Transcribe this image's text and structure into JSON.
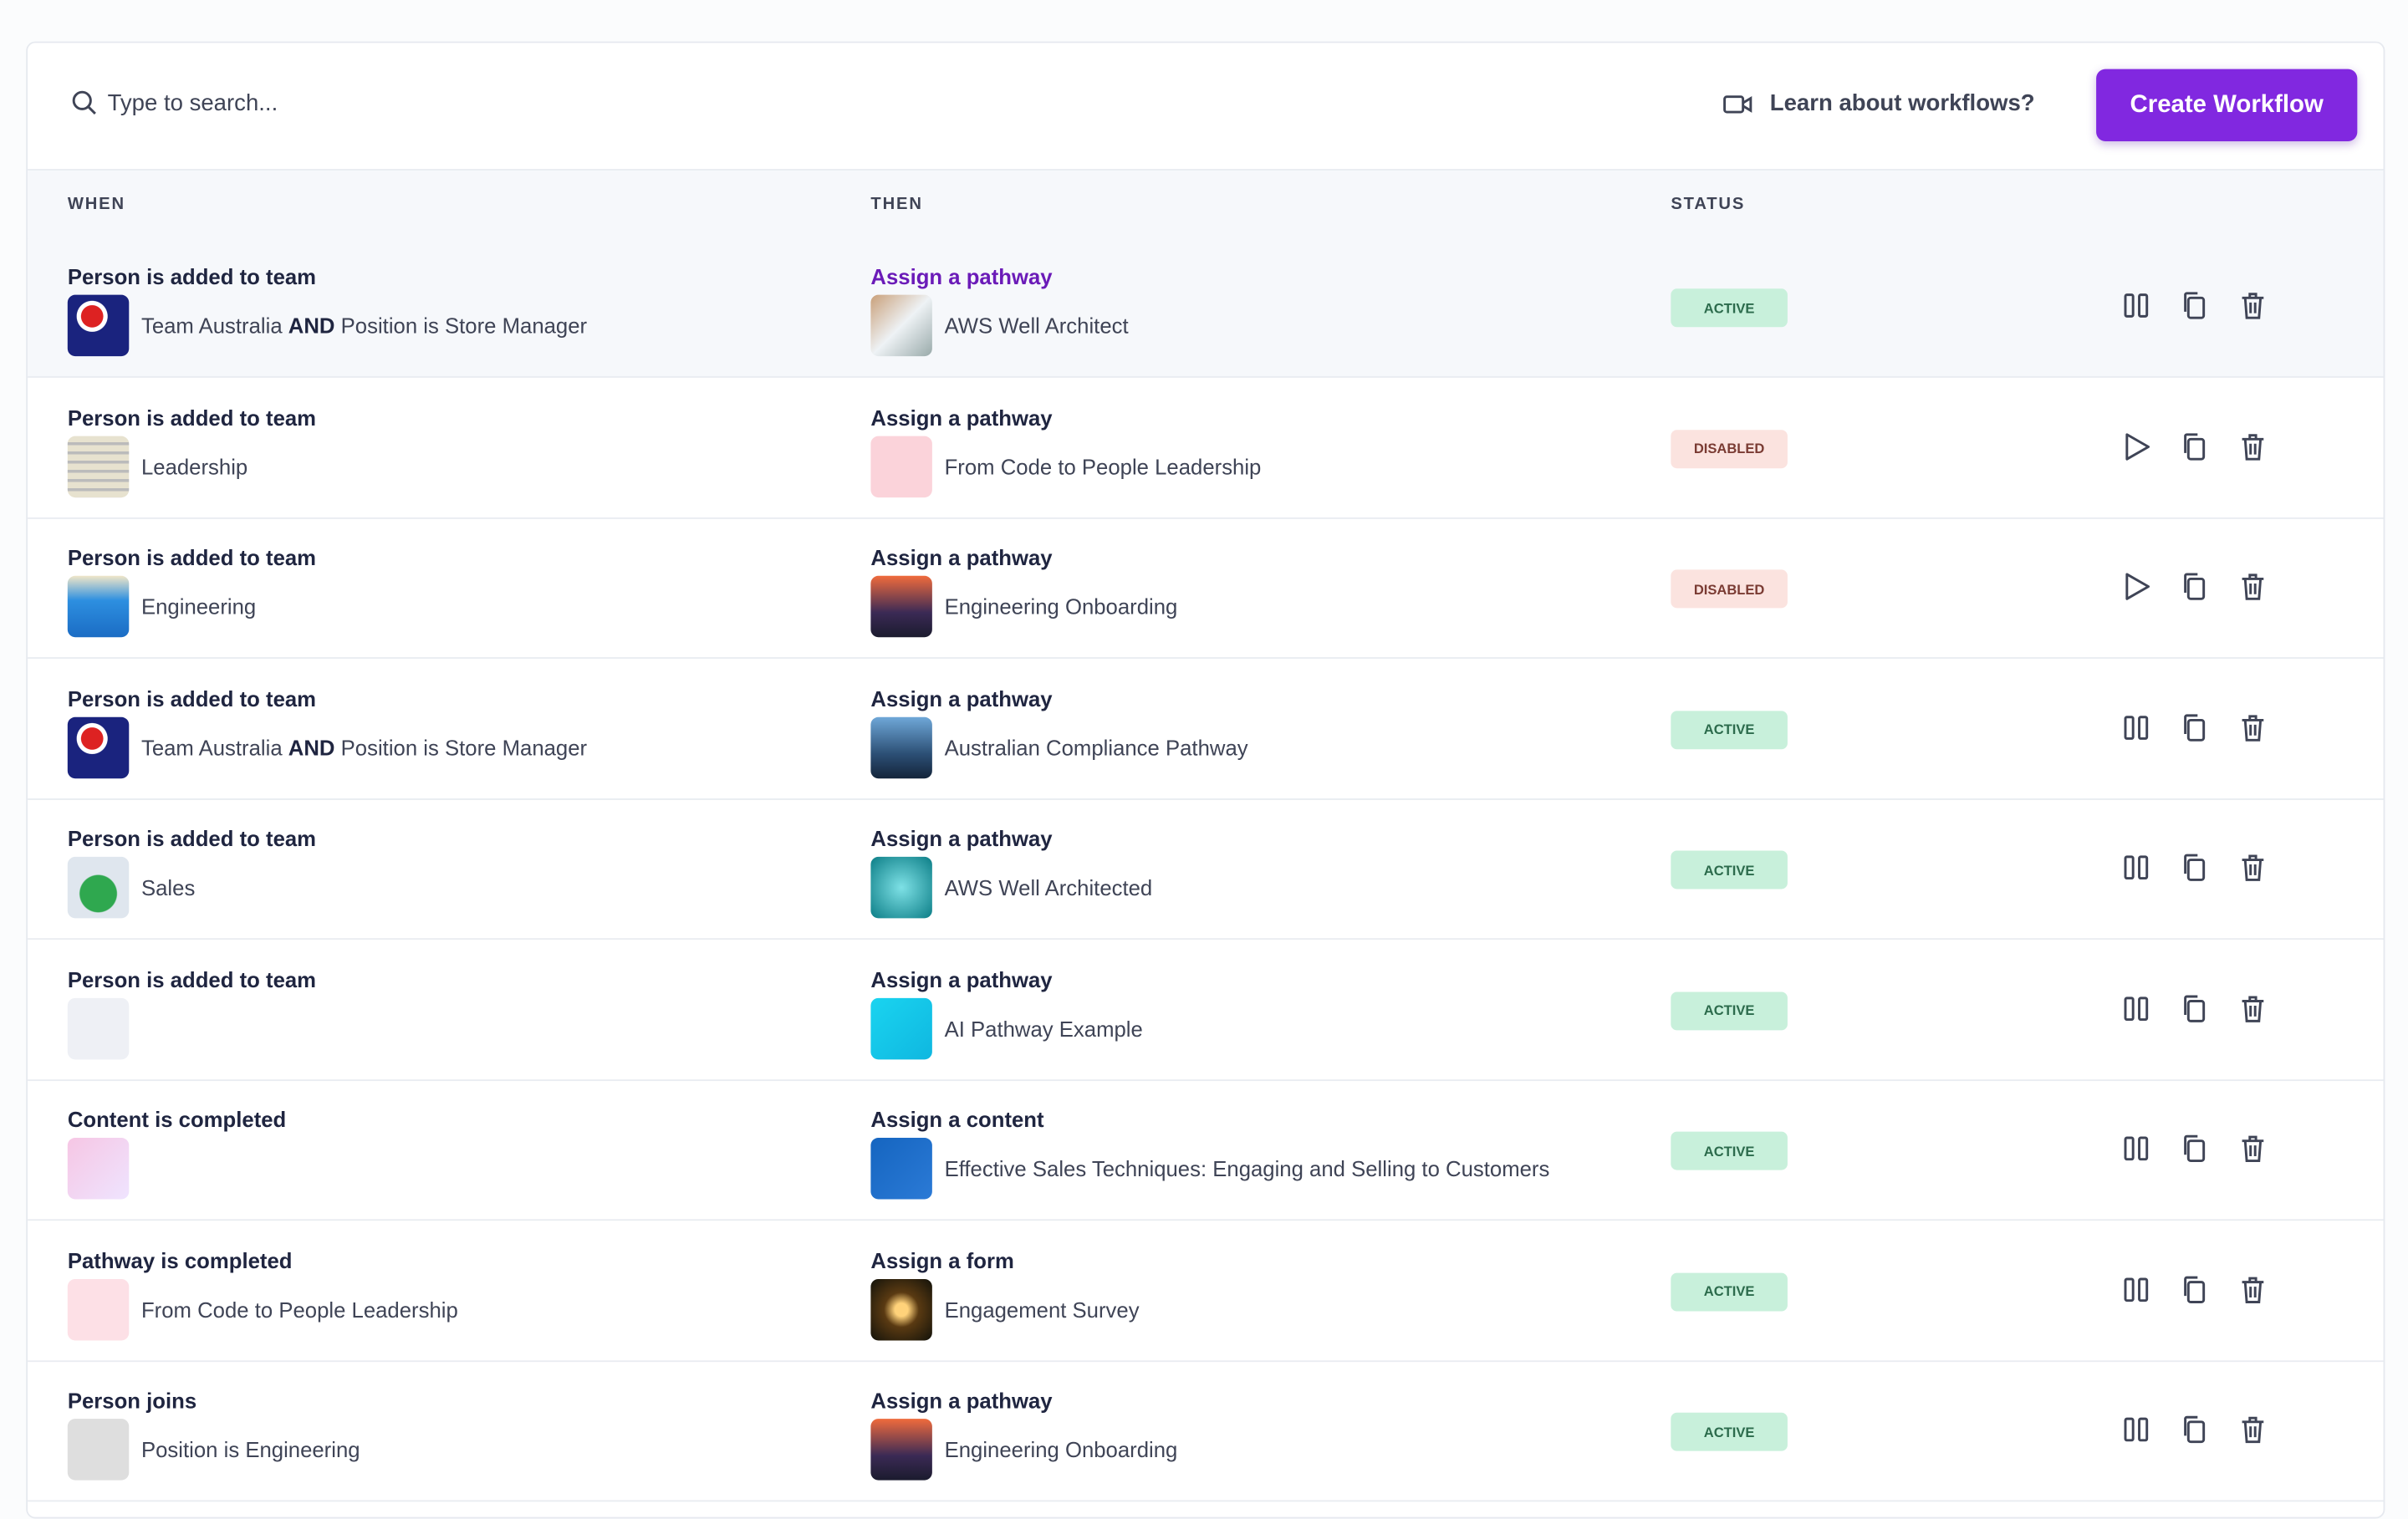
{
  "toolbar": {
    "search_placeholder": "Type to search...",
    "learn_link": "Learn about workflows?",
    "create_button": "Create Workflow"
  },
  "columns": [
    "WHEN",
    "THEN",
    "STATUS"
  ],
  "rows": [
    {
      "when": {
        "title": "Person is added to team",
        "detail": [
          "Team Australia ",
          "AND",
          " Position is Store Manager"
        ]
      },
      "then": {
        "title": "Assign a pathway",
        "detail": "AWS Well Architect"
      },
      "status": "ACTIVE",
      "active": true
    },
    {
      "when": {
        "title": "Person is added to team",
        "detail": [
          "Leadership"
        ]
      },
      "then": {
        "title": "Assign a pathway",
        "detail": "From Code to People Leadership"
      },
      "status": "DISABLED",
      "active": false
    },
    {
      "when": {
        "title": "Person is added to team",
        "detail": [
          "Engineering"
        ]
      },
      "then": {
        "title": "Assign a pathway",
        "detail": "Engineering Onboarding"
      },
      "status": "DISABLED",
      "active": false
    },
    {
      "when": {
        "title": "Person is added to team",
        "detail": [
          "Team Australia ",
          "AND",
          " Position is Store Manager"
        ]
      },
      "then": {
        "title": "Assign a pathway",
        "detail": "Australian Compliance Pathway"
      },
      "status": "ACTIVE",
      "active": true
    },
    {
      "when": {
        "title": "Person is added to team",
        "detail": [
          "Sales"
        ]
      },
      "then": {
        "title": "Assign a pathway",
        "detail": "AWS Well Architected"
      },
      "status": "ACTIVE",
      "active": true
    },
    {
      "when": {
        "title": "Person is added to team",
        "detail": []
      },
      "then": {
        "title": "Assign a pathway",
        "detail": "AI Pathway Example"
      },
      "status": "ACTIVE",
      "active": true
    },
    {
      "when": {
        "title": "Content is completed",
        "detail": []
      },
      "then": {
        "title": "Assign a content",
        "detail": "Effective Sales Techniques: Engaging and Selling to Customers"
      },
      "status": "ACTIVE",
      "active": true
    },
    {
      "when": {
        "title": "Pathway is completed",
        "detail": [
          "From Code to People Leadership"
        ]
      },
      "then": {
        "title": "Assign a form",
        "detail": "Engagement Survey"
      },
      "status": "ACTIVE",
      "active": true
    },
    {
      "when": {
        "title": "Person joins",
        "detail": [
          "Position is Engineering"
        ]
      },
      "then": {
        "title": "Assign a pathway",
        "detail": "Engineering Onboarding"
      },
      "status": "ACTIVE",
      "active": true
    }
  ]
}
